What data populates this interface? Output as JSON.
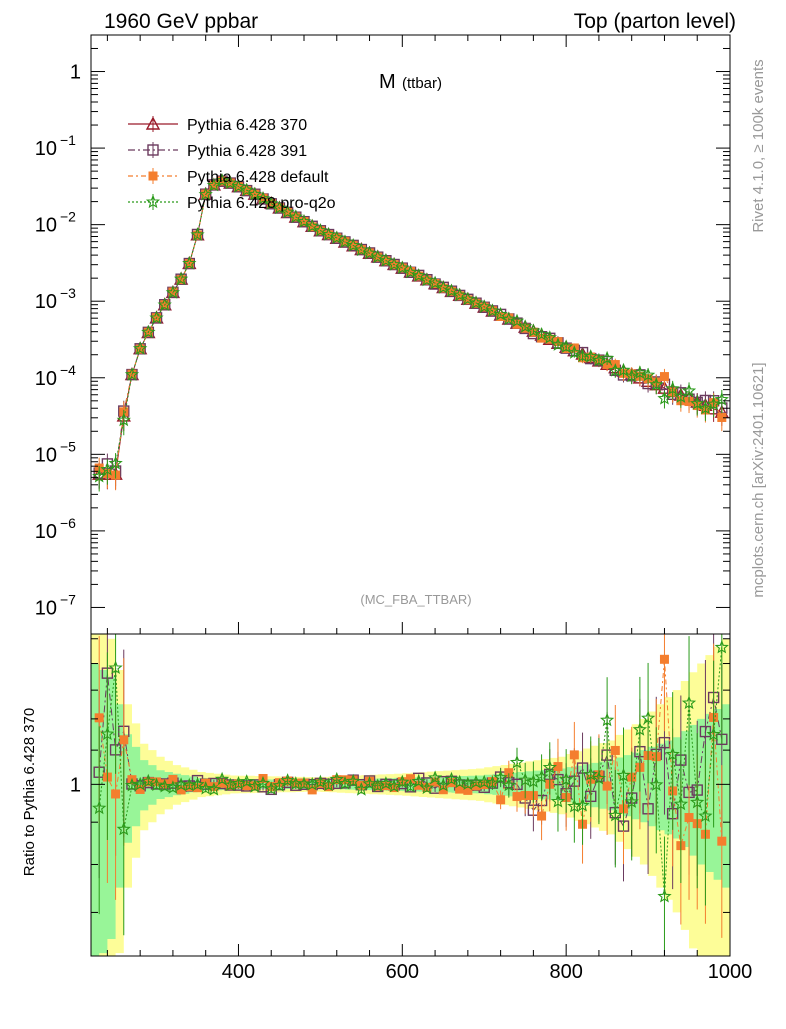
{
  "header": {
    "left_title": "1960 GeV ppbar",
    "right_title": "Top (parton level)"
  },
  "side_labels": {
    "rivet": "Rivet 4.1.0, ≥ 100k events",
    "mcplots": "mcplots.cern.ch [arXiv:2401.10621]"
  },
  "chart_data": {
    "type": "line",
    "title_main": "M",
    "title_sub": "(ttbar)",
    "analysis_tag": "(MC_FBA_TTBAR)",
    "xlabel": "",
    "ylabel_ratio": "Ratio to Pythia 6.428 370",
    "xlim": [
      220,
      1000
    ],
    "ylim_main": [
      4.5e-08,
      3.0
    ],
    "ylim_ratio": [
      0.62,
      1.52
    ],
    "x_ticks": [
      "400",
      "600",
      "800",
      "1000"
    ],
    "x_tick_values": [
      400,
      600,
      800,
      1000
    ],
    "y_ticks_main": [
      {
        "value": 1,
        "base": "1",
        "exp": ""
      },
      {
        "value": 0.1,
        "base": "10",
        "exp": "−1"
      },
      {
        "value": 0.01,
        "base": "10",
        "exp": "−2"
      },
      {
        "value": 0.001,
        "base": "10",
        "exp": "−3"
      },
      {
        "value": 0.0001,
        "base": "10",
        "exp": "−4"
      },
      {
        "value": 1e-05,
        "base": "10",
        "exp": "−5"
      },
      {
        "value": 1e-06,
        "base": "10",
        "exp": "−6"
      },
      {
        "value": 1e-07,
        "base": "10",
        "exp": "−7"
      }
    ],
    "y_ticks_ratio": [
      "1"
    ],
    "series": [
      {
        "name": "Pythia 6.428 370",
        "color": "#9a1b2a",
        "marker": "triangle",
        "dash": "",
        "reference": true
      },
      {
        "name": "Pythia 6.428 391",
        "color": "#6b3a5e",
        "marker": "square-open",
        "dash": "7,3,2,3"
      },
      {
        "name": "Pythia 6.428 default",
        "color": "#f47e2e",
        "marker": "square-filled",
        "dash": "5,3,2,3"
      },
      {
        "name": "Pythia 6.428 pro-q2o",
        "color": "#2a9a1a",
        "marker": "star",
        "dash": "2,2"
      }
    ],
    "shape": {
      "x": [
        230,
        250,
        262,
        270,
        280,
        292,
        305,
        318,
        333,
        345,
        360,
        375,
        390,
        420,
        500,
        600,
        700,
        800,
        900,
        1000
      ],
      "y": [
        5.5e-06,
        5.5e-06,
        4.5e-05,
        0.00011,
        0.00024,
        0.00043,
        0.00075,
        0.0012,
        0.0022,
        0.004,
        0.025,
        0.038,
        0.035,
        0.025,
        0.0083,
        0.0027,
        0.00084,
        0.00025,
        9e-05,
        3.2e-05
      ]
    },
    "ratio_bands": {
      "x": [
        230,
        250,
        270,
        290,
        310,
        330,
        360,
        400,
        500,
        600,
        700,
        800,
        860,
        900,
        940,
        970,
        1000
      ],
      "green_half_width": [
        0.4,
        0.35,
        0.15,
        0.07,
        0.04,
        0.03,
        0.018,
        0.015,
        0.012,
        0.018,
        0.025,
        0.045,
        0.07,
        0.1,
        0.14,
        0.2,
        0.25
      ],
      "yellow_half_width": [
        0.65,
        0.5,
        0.25,
        0.12,
        0.08,
        0.055,
        0.035,
        0.025,
        0.02,
        0.03,
        0.045,
        0.08,
        0.13,
        0.2,
        0.3,
        0.4,
        0.5
      ],
      "green_color": "#98f598",
      "yellow_color": "#fdfd98"
    }
  }
}
